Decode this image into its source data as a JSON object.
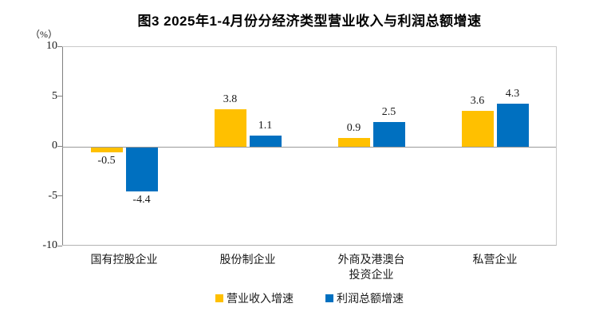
{
  "title": "图3  2025年1-4月份分经济类型营业收入与利润总额增速",
  "y_axis": {
    "unit": "（%）",
    "ticks": [
      10,
      5,
      0,
      -5,
      -10
    ]
  },
  "chart_data": {
    "type": "bar",
    "title": "图3  2025年1-4月份分经济类型营业收入与利润总额增速",
    "categories": [
      "国有控股企业",
      "股份制企业",
      "外商及港澳台\n投资企业",
      "私营企业"
    ],
    "series": [
      {
        "name": "营业收入增速",
        "color": "#FFC000",
        "values": [
          -0.5,
          3.8,
          0.9,
          3.6
        ]
      },
      {
        "name": "利润总额增速",
        "color": "#0070C0",
        "values": [
          -4.4,
          1.1,
          2.5,
          4.3
        ]
      }
    ],
    "ylabel": "（%）",
    "ylim": [
      -10,
      10
    ],
    "ytick_step": 5,
    "grid": false,
    "legend_position": "bottom",
    "value_labels": "outside-end"
  }
}
